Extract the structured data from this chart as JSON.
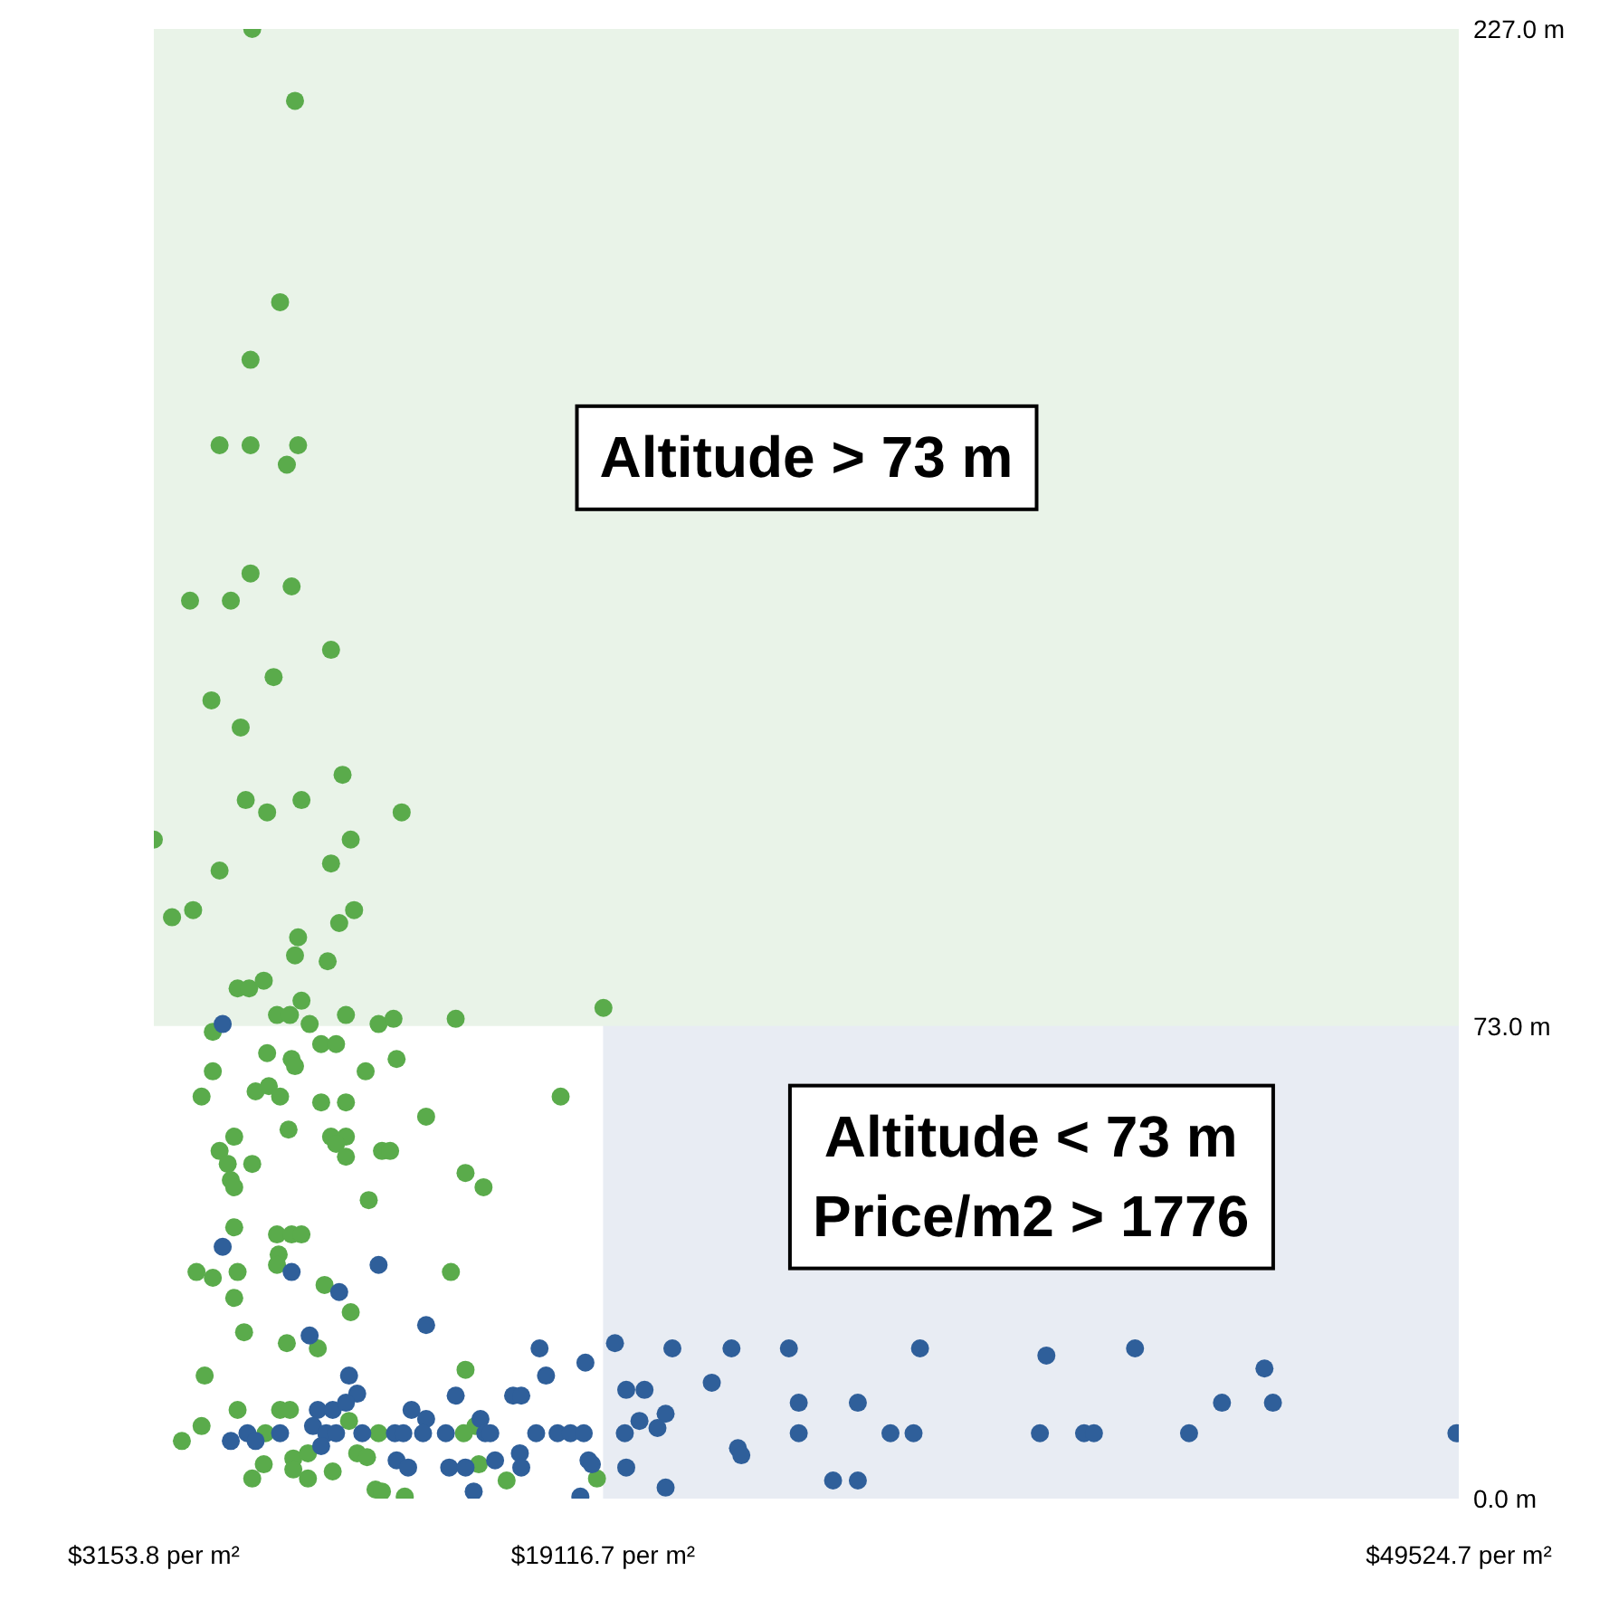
{
  "chart_data": {
    "type": "scatter",
    "marker": "circle",
    "xlim": [
      3153.8,
      49524.7
    ],
    "ylim": [
      0,
      227
    ],
    "xticks": [
      {
        "value": 3153.8,
        "label": "$3153.8 per m²"
      },
      {
        "value": 19116.7,
        "label": "$19116.7 per m²"
      },
      {
        "value": 49524.7,
        "label": "$49524.7 per m²"
      }
    ],
    "yticks": [
      {
        "value": 0,
        "label": "0.0 m"
      },
      {
        "value": 73,
        "label": "73.0 m"
      },
      {
        "value": 227,
        "label": "227.0 m"
      }
    ],
    "bands": [
      {
        "axis": "x",
        "from": 19116.7,
        "to": 49524.7,
        "color": "#e8ecf3",
        "label": "Altitude < 73 m\nPrice/m2 > 1776"
      },
      {
        "axis": "y",
        "from": 73,
        "to": 227,
        "color": "#e9f3e8",
        "label": "Altitude > 73 m"
      }
    ],
    "series": [
      {
        "color": "#5aab4b",
        "x": [
          6650,
          8170,
          7640,
          6590,
          5490,
          6590,
          8280,
          7880,
          6590,
          4440,
          5890,
          8050,
          9450,
          7410,
          5200,
          6240,
          9860,
          6420,
          7180,
          8400,
          11960,
          3154,
          10150,
          5490,
          9450,
          3800,
          4550,
          10270,
          9740,
          8280,
          8170,
          9330,
          6130,
          6540,
          7060,
          8400,
          7530,
          7990,
          9980,
          8690,
          11140,
          11670,
          13880,
          19130,
          5250,
          7180,
          8050,
          8170,
          9100,
          9630,
          11780,
          5250,
          10680,
          4850,
          6770,
          7240,
          7640,
          9100,
          9980,
          17610,
          12830,
          7940,
          6010,
          9450,
          9980,
          9630,
          9980,
          5490,
          5780,
          6650,
          11260,
          11550,
          5890,
          6010,
          14230,
          14870,
          10790,
          6010,
          7530,
          8050,
          8400,
          7590,
          7530,
          4670,
          5250,
          6130,
          6010,
          9220,
          10150,
          6360,
          7880,
          8980,
          4960,
          14230,
          13710,
          6130,
          7640,
          7990,
          4850,
          4150,
          7120,
          10090,
          8110,
          8630,
          7060,
          6650,
          8110,
          8630,
          9510,
          10380,
          10730,
          11030,
          14580,
          11140,
          14170,
          14700,
          18900,
          15690,
          11260,
          12070
        ],
        "values": [
          227,
          215.9,
          184.8,
          175.9,
          162.7,
          162.7,
          162.7,
          159.7,
          142.9,
          138.7,
          138.7,
          140.9,
          131.1,
          126.9,
          123.3,
          119.1,
          111.8,
          107.9,
          106,
          107.9,
          106,
          101.8,
          101.8,
          97,
          98.1,
          89.8,
          90.9,
          90.9,
          88.9,
          86.7,
          83.9,
          83,
          78.8,
          78.8,
          80,
          76.9,
          74.7,
          74.7,
          74.7,
          73.3,
          73.3,
          74.1,
          74.1,
          75.8,
          72.1,
          68.8,
          67.9,
          66.8,
          70.2,
          70.2,
          67.9,
          66,
          66,
          62.1,
          62.9,
          63.7,
          62.1,
          61.2,
          61.2,
          62.1,
          59,
          57,
          55.9,
          55.9,
          55.9,
          54.8,
          52.8,
          53.7,
          51.7,
          51.7,
          53.7,
          53.7,
          49.2,
          48.1,
          50.3,
          48.1,
          46.1,
          41.9,
          40.8,
          40.8,
          40.8,
          37.7,
          36.1,
          35,
          34.1,
          35,
          31,
          33,
          28.8,
          25.7,
          24,
          23.2,
          19,
          19.9,
          35,
          13.7,
          13.7,
          13.7,
          11.2,
          8.9,
          10.1,
          12,
          6.2,
          7,
          5.3,
          3.1,
          4.5,
          3.1,
          4.2,
          7,
          6.4,
          1.4,
          11.2,
          10.1,
          10.1,
          5.3,
          3.1,
          2.8,
          1.1,
          0.3
        ]
      },
      {
        "color": "#2f5f9a",
        "x": [
          5600,
          5600,
          11140,
          8050,
          9740,
          12830,
          8690,
          10090,
          10380,
          8980,
          9510,
          9980,
          5890,
          6480,
          6770,
          7640,
          8810,
          9280,
          9630,
          10560,
          9100,
          16860,
          17090,
          18490,
          19540,
          13880,
          15920,
          16210,
          19940,
          12310,
          12830,
          14760,
          11720,
          12020,
          12720,
          13530,
          14930,
          15110,
          16740,
          17500,
          17960,
          18430,
          19890,
          11780,
          12190,
          13650,
          14230,
          15280,
          16160,
          16210,
          18600,
          18720,
          19940,
          14520,
          18310,
          21580,
          23680,
          25720,
          30380,
          34870,
          38020,
          42620,
          20590,
          22980,
          26070,
          28170,
          41110,
          42920,
          20410,
          21340,
          21050,
          26070,
          29330,
          30150,
          34640,
          36210,
          36560,
          39940,
          49440,
          23910,
          24030,
          21340,
          27290,
          28170
        ],
        "values": [
          73.3,
          38.9,
          36.1,
          35,
          31.9,
          26.8,
          25.2,
          19,
          16.2,
          13.7,
          13.7,
          14.8,
          8.9,
          10.1,
          8.9,
          10.1,
          11.2,
          10.1,
          10.1,
          10.1,
          8.1,
          23.2,
          19,
          21,
          24,
          15.9,
          15.9,
          15.9,
          16.8,
          13.7,
          12.3,
          12.3,
          10.1,
          10.1,
          10.1,
          10.1,
          10.1,
          10.1,
          10.1,
          10.1,
          10.1,
          10.1,
          10.1,
          5.9,
          4.8,
          4.8,
          4.8,
          5.9,
          7,
          4.8,
          5.9,
          5.3,
          4.8,
          1.1,
          0.3,
          23.2,
          23.2,
          23.2,
          23.2,
          22.1,
          23.2,
          20.1,
          16.8,
          17.9,
          14.8,
          14.8,
          14.8,
          14.8,
          12,
          13.1,
          10.9,
          10.1,
          10.1,
          10.1,
          10.1,
          10.1,
          10.1,
          10.1,
          10.1,
          7.8,
          6.7,
          1.7,
          2.8,
          2.8
        ]
      }
    ]
  }
}
